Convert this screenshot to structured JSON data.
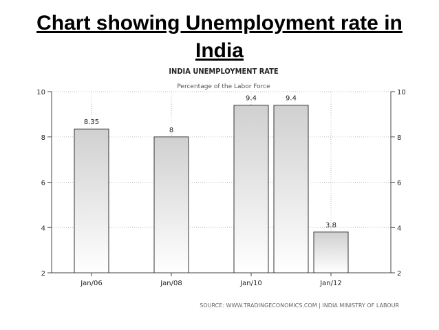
{
  "slide": {
    "title": "Chart showing Unemployment rate in India"
  },
  "chart_data": {
    "type": "bar",
    "title": "INDIA UNEMPLOYMENT RATE",
    "subtitle": "Percentage of the Labor Force",
    "source": "SOURCE: WWW.TRADINGECONOMICS.COM | INDIA MINISTRY OF LABOUR",
    "x": [
      2006.0,
      2008.0,
      2010.0,
      2011.0,
      2012.0
    ],
    "values": [
      8.35,
      8,
      9.4,
      9.4,
      3.8
    ],
    "data_labels": [
      "8.35",
      "8",
      "9.4",
      "9.4",
      "3.8"
    ],
    "xticks": [
      2006,
      2008,
      2010,
      2012
    ],
    "xtick_labels": [
      "Jan/06",
      "Jan/08",
      "Jan/10",
      "Jan/12"
    ],
    "yticks": [
      2,
      4,
      6,
      8,
      10
    ],
    "ylim": [
      2,
      10
    ],
    "xlim": [
      2005.0,
      2013.5
    ],
    "grid": true,
    "ylabel": "",
    "xlabel": "",
    "colors": {
      "bar_top": "#d0d0d0",
      "bar_bottom": "#ffffff",
      "bar_stroke": "#333333",
      "grid": "#bbbbbb"
    }
  }
}
